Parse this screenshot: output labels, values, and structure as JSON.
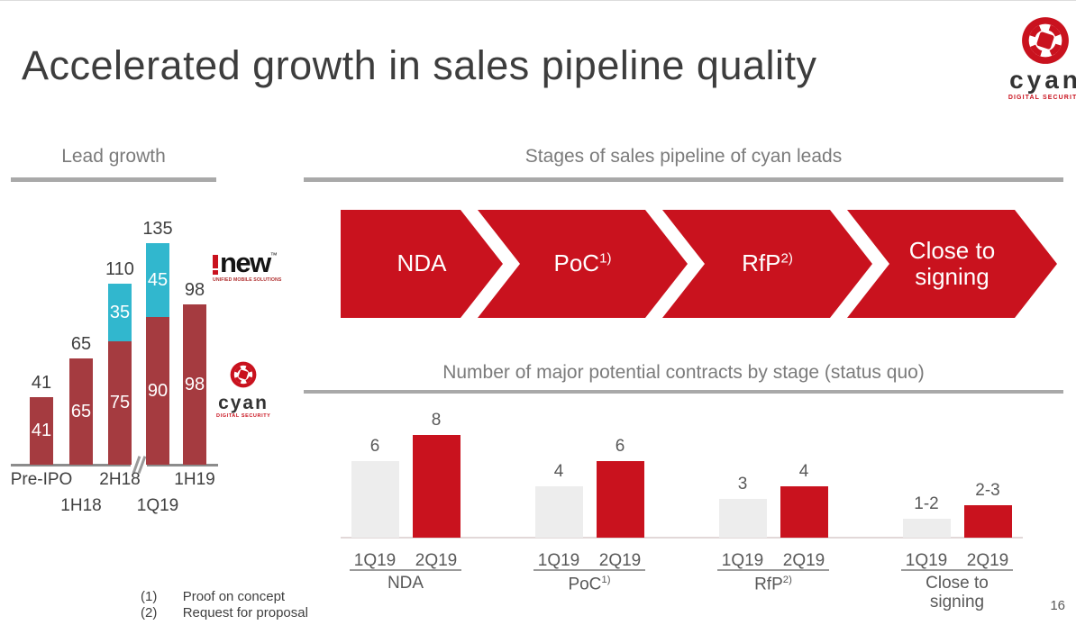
{
  "slide": {
    "title": "Accelerated growth in sales pipeline quality",
    "page_number": "16",
    "footnotes": [
      {
        "marker": "(1)",
        "text": "Proof on concept"
      },
      {
        "marker": "(2)",
        "text": "Request for proposal"
      }
    ]
  },
  "brand": {
    "word": "cyan",
    "tagline": "DIGITAL SECURITY"
  },
  "inew_logo": {
    "word": "new",
    "trademark": "™",
    "tagline": "UNIFIED MOBILE SOLUTIONS"
  },
  "colors": {
    "red_bright": "#c9121e",
    "red_dark": "#a53b40",
    "cyan": "#31b7ce",
    "gray_bar": "#ededed"
  },
  "lead_growth": {
    "heading": "Lead growth",
    "chart_data": {
      "type": "bar",
      "stacked": true,
      "categories": [
        "Pre-IPO",
        "1H18",
        "2H18",
        "1Q19",
        "1H19"
      ],
      "series": [
        {
          "name": "cyan leads",
          "color": "#a53b40",
          "values": [
            41,
            65,
            75,
            90,
            98
          ]
        },
        {
          "name": "i-new leads",
          "color": "#31b7ce",
          "values": [
            0,
            0,
            35,
            45,
            0
          ]
        }
      ],
      "totals": [
        41,
        65,
        110,
        135,
        98
      ],
      "axis_break_between": [
        "2H18",
        "1Q19"
      ]
    }
  },
  "pipeline": {
    "heading": "Stages of sales pipeline of cyan leads",
    "stages": [
      {
        "label": "NDA",
        "sup": ""
      },
      {
        "label": "PoC",
        "sup": "1)"
      },
      {
        "label": "RfP",
        "sup": "2)"
      },
      {
        "label": "Close to signing",
        "sup": ""
      }
    ]
  },
  "contracts": {
    "heading": "Number of major potential contracts by stage (status quo)",
    "chart_data": {
      "type": "bar",
      "x_labels": [
        "1Q19",
        "2Q19"
      ],
      "series_names": [
        "1Q19",
        "2Q19"
      ],
      "colors": {
        "1Q19": "#ededed",
        "2Q19": "#c9121e"
      },
      "groups": [
        {
          "stage": "NDA",
          "sup": "",
          "values_text": [
            "6",
            "8"
          ],
          "values": [
            6,
            8
          ]
        },
        {
          "stage": "PoC",
          "sup": "1)",
          "values_text": [
            "4",
            "6"
          ],
          "values": [
            4,
            6
          ]
        },
        {
          "stage": "RfP",
          "sup": "2)",
          "values_text": [
            "3",
            "4"
          ],
          "values": [
            3,
            4
          ]
        },
        {
          "stage": "Close to signing",
          "sup": "",
          "values_text": [
            "1-2",
            "2-3"
          ],
          "values": [
            1.5,
            2.5
          ]
        }
      ]
    }
  }
}
